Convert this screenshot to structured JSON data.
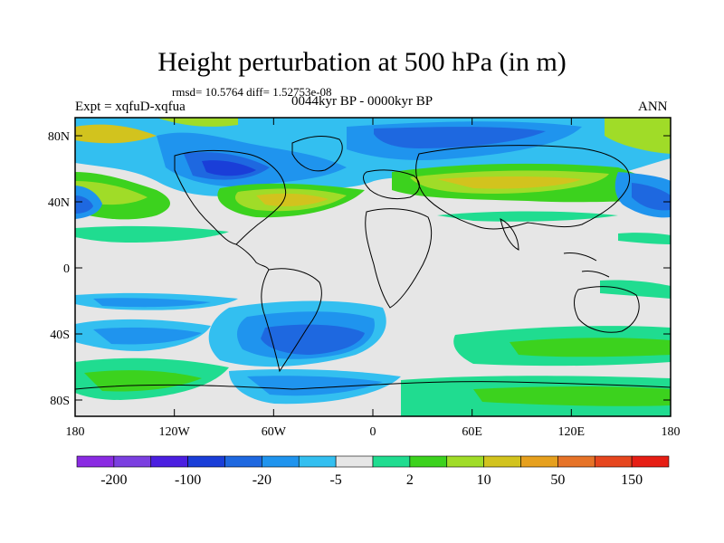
{
  "title": "Height perturbation at 500 hPa (in m)",
  "stats": "rmsd= 10.5764 diff= 1.52753e-08",
  "experiment": "Expt = xqfuD-xqfua",
  "period": "0044kyr BP - 0000kyr BP",
  "season": "ANN",
  "lat_labels": [
    "80N",
    "40N",
    "0",
    "40S",
    "80S"
  ],
  "lon_labels": [
    "180",
    "120W",
    "60W",
    "0",
    "60E",
    "120E",
    "180"
  ],
  "colorbar": {
    "colors": [
      "#8a2be2",
      "#7b3fe0",
      "#4b1fe0",
      "#1a3ed8",
      "#1e68e0",
      "#1f94ee",
      "#33bff0",
      "#e6e6e6",
      "#20dc90",
      "#3cd21e",
      "#a0dc28",
      "#d2c31e",
      "#e6a01e",
      "#e67328",
      "#e6461e",
      "#e61e14"
    ],
    "labels": [
      "-200",
      "-100",
      "-20",
      "-5",
      "2",
      "10",
      "50",
      "150"
    ]
  },
  "field_colors": {
    "land": "#000000",
    "background": "#e6e6e6"
  }
}
